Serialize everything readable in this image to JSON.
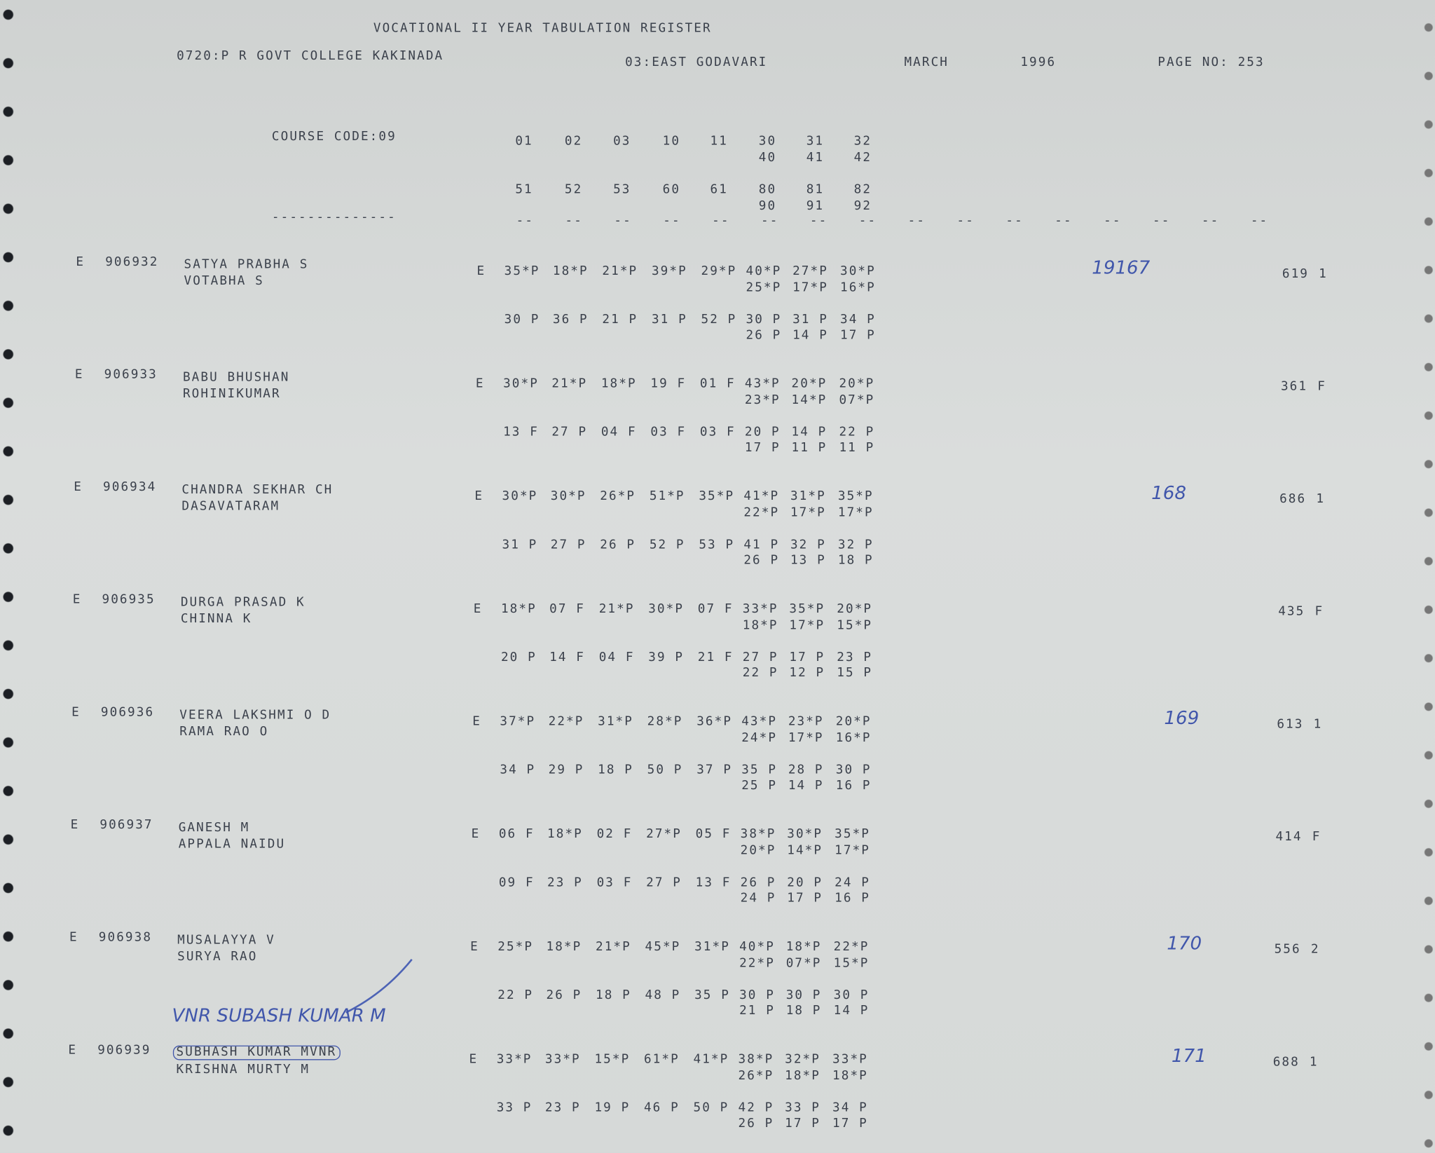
{
  "header": {
    "title": "VOCATIONAL II YEAR TABULATION REGISTER",
    "college": "0720:P R GOVT COLLEGE KAKINADA",
    "district": "03:EAST GODAVARI",
    "month": "MARCH",
    "year": "1996",
    "page": "PAGE NO: 253"
  },
  "course": {
    "code": "COURSE CODE:09",
    "row1": [
      "01",
      "02",
      "03",
      "10",
      "11",
      "30",
      "31",
      "32"
    ],
    "row1b": [
      "40",
      "41",
      "42"
    ],
    "row2": [
      "51",
      "52",
      "53",
      "60",
      "61",
      "80",
      "81",
      "82"
    ],
    "row2b": [
      "90",
      "91",
      "92"
    ],
    "left_dashes": "--------------",
    "dash_row": [
      "--",
      "--",
      "--",
      "--",
      "--",
      "--",
      "--",
      "--",
      "--",
      "--",
      "--",
      "--",
      "--",
      "--",
      "--",
      "--"
    ]
  },
  "students": [
    {
      "marker": "E",
      "roll": "906932",
      "name": "SATYA PRABHA S",
      "father": "VOTABHA S",
      "exam": "E",
      "row1": [
        "35*P",
        "18*P",
        "21*P",
        "39*P",
        "29*P",
        "40*P",
        "27*P",
        "30*P"
      ],
      "row1b": [
        "25*P",
        "17*P",
        "16*P"
      ],
      "row2": [
        "30 P",
        "36 P",
        "21 P",
        "31 P",
        "52 P",
        "30 P",
        "31 P",
        "34 P"
      ],
      "row2b": [
        "26 P",
        "14 P",
        "17 P"
      ],
      "total": "619",
      "result": "1",
      "note": "19167"
    },
    {
      "marker": "E",
      "roll": "906933",
      "name": "BABU BHUSHAN",
      "father": "ROHINIKUMAR",
      "exam": "E",
      "row1": [
        "30*P",
        "21*P",
        "18*P",
        "19 F",
        "01 F",
        "43*P",
        "20*P",
        "20*P"
      ],
      "row1b": [
        "23*P",
        "14*P",
        "07*P"
      ],
      "row2": [
        "13 F",
        "27 P",
        "04 F",
        "03 F",
        "03 F",
        "20 P",
        "14 P",
        "22 P"
      ],
      "row2b": [
        "17 P",
        "11 P",
        "11 P"
      ],
      "total": "361",
      "result": "F"
    },
    {
      "marker": "E",
      "roll": "906934",
      "name": "CHANDRA SEKHAR CH",
      "father": "DASAVATARAM",
      "exam": "E",
      "row1": [
        "30*P",
        "30*P",
        "26*P",
        "51*P",
        "35*P",
        "41*P",
        "31*P",
        "35*P"
      ],
      "row1b": [
        "22*P",
        "17*P",
        "17*P"
      ],
      "row2": [
        "31 P",
        "27 P",
        "26 P",
        "52 P",
        "53 P",
        "41 P",
        "32 P",
        "32 P"
      ],
      "row2b": [
        "26 P",
        "13 P",
        "18 P"
      ],
      "total": "686",
      "result": "1",
      "note": "168"
    },
    {
      "marker": "E",
      "roll": "906935",
      "name": "DURGA PRASAD K",
      "father": "CHINNA K",
      "exam": "E",
      "row1": [
        "18*P",
        "07 F",
        "21*P",
        "30*P",
        "07 F",
        "33*P",
        "35*P",
        "20*P"
      ],
      "row1b": [
        "18*P",
        "17*P",
        "15*P"
      ],
      "row2": [
        "20 P",
        "14 F",
        "04 F",
        "39 P",
        "21 F",
        "27 P",
        "17 P",
        "23 P"
      ],
      "row2b": [
        "22 P",
        "12 P",
        "15 P"
      ],
      "total": "435",
      "result": "F"
    },
    {
      "marker": "E",
      "roll": "906936",
      "name": "VEERA LAKSHMI O D",
      "father": "RAMA RAO O",
      "exam": "E",
      "row1": [
        "37*P",
        "22*P",
        "31*P",
        "28*P",
        "36*P",
        "43*P",
        "23*P",
        "20*P"
      ],
      "row1b": [
        "24*P",
        "17*P",
        "16*P"
      ],
      "row2": [
        "34 P",
        "29 P",
        "18 P",
        "50 P",
        "37 P",
        "35 P",
        "28 P",
        "30 P"
      ],
      "row2b": [
        "25 P",
        "14 P",
        "16 P"
      ],
      "total": "613",
      "result": "1",
      "note": "169"
    },
    {
      "marker": "E",
      "roll": "906937",
      "name": "GANESH M",
      "father": "APPALA NAIDU",
      "exam": "E",
      "row1": [
        "06 F",
        "18*P",
        "02 F",
        "27*P",
        "05 F",
        "38*P",
        "30*P",
        "35*P"
      ],
      "row1b": [
        "20*P",
        "14*P",
        "17*P"
      ],
      "row2": [
        "09 F",
        "23 P",
        "03 F",
        "27 P",
        "13 F",
        "26 P",
        "20 P",
        "24 P"
      ],
      "row2b": [
        "24 P",
        "17 P",
        "16 P"
      ],
      "total": "414",
      "result": "F"
    },
    {
      "marker": "E",
      "roll": "906938",
      "name": "MUSALAYYA V",
      "father": "SURYA RAO",
      "exam": "E",
      "row1": [
        "25*P",
        "18*P",
        "21*P",
        "45*P",
        "31*P",
        "40*P",
        "18*P",
        "22*P"
      ],
      "row1b": [
        "22*P",
        "07*P",
        "15*P"
      ],
      "row2": [
        "22 P",
        "26 P",
        "18 P",
        "48 P",
        "35 P",
        "30 P",
        "30 P",
        "30 P"
      ],
      "row2b": [
        "21 P",
        "18 P",
        "14 P"
      ],
      "total": "556",
      "result": "2",
      "note": "170"
    },
    {
      "marker": "E",
      "roll": "906939",
      "name": "SUBHASH KUMAR MVNR",
      "father": "KRISHNA MURTY M",
      "exam": "E",
      "row1": [
        "33*P",
        "33*P",
        "15*P",
        "61*P",
        "41*P",
        "38*P",
        "32*P",
        "33*P"
      ],
      "row1b": [
        "26*P",
        "18*P",
        "18*P"
      ],
      "row2": [
        "33 P",
        "23 P",
        "19 P",
        "46 P",
        "50 P",
        "42 P",
        "33 P",
        "34 P"
      ],
      "row2b": [
        "26 P",
        "17 P",
        "17 P"
      ],
      "total": "688",
      "result": "1",
      "note": "171",
      "annotation": "VNR SUBASH KUMAR M"
    }
  ]
}
